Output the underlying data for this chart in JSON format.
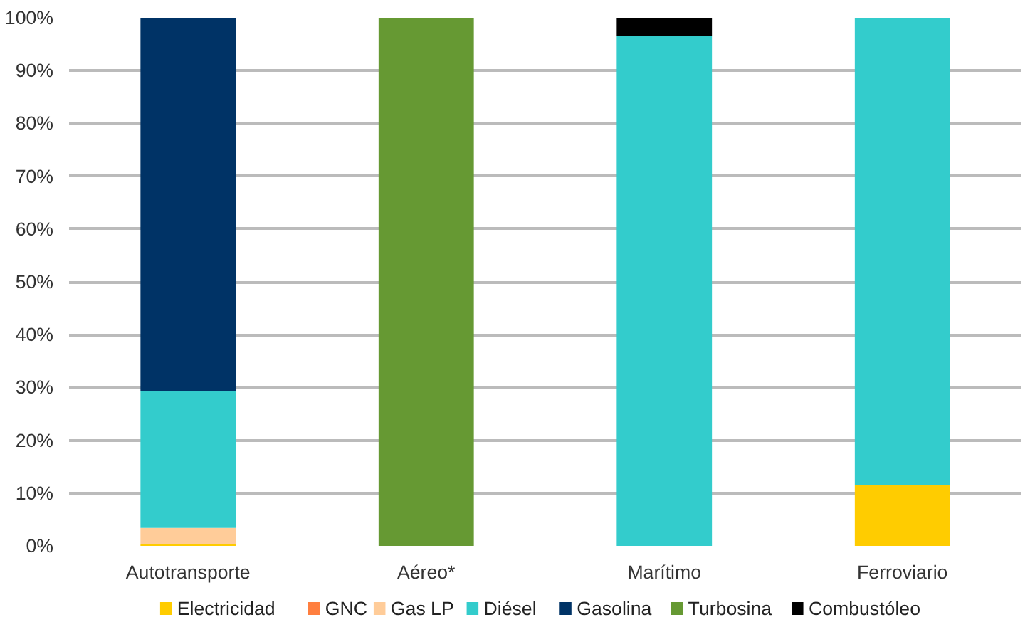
{
  "chart_data": {
    "type": "bar",
    "stacked": true,
    "categories": [
      "Autotransporte",
      "Aéreo*",
      "Marítimo",
      "Ferroviario"
    ],
    "series": [
      {
        "name": "Electricidad",
        "color": "#ffcc00",
        "values": [
          0.3,
          0,
          0,
          11.6
        ]
      },
      {
        "name": "GNC",
        "color": "#ff7f3f",
        "values": [
          0,
          0,
          0,
          0
        ]
      },
      {
        "name": "Gas LP",
        "color": "#ffcc99",
        "values": [
          3.1,
          0,
          0,
          0
        ]
      },
      {
        "name": "Diésel",
        "color": "#33cccc",
        "values": [
          25.9,
          0,
          96.5,
          88.4
        ]
      },
      {
        "name": "Gasolina",
        "color": "#003366",
        "values": [
          70.7,
          0,
          0,
          0
        ]
      },
      {
        "name": "Turbosina",
        "color": "#669933",
        "values": [
          0,
          100,
          0,
          0
        ]
      },
      {
        "name": "Combustóleo",
        "color": "#000000",
        "values": [
          0,
          0,
          3.5,
          0
        ]
      }
    ],
    "ylim": [
      0,
      100
    ],
    "yticks": [
      {
        "value": 0,
        "label": "0%"
      },
      {
        "value": 10,
        "label": "10%"
      },
      {
        "value": 20,
        "label": "20%"
      },
      {
        "value": 30,
        "label": "30%"
      },
      {
        "value": 40,
        "label": "40%"
      },
      {
        "value": 50,
        "label": "50%"
      },
      {
        "value": 60,
        "label": "60%"
      },
      {
        "value": 70,
        "label": "70%"
      },
      {
        "value": 80,
        "label": "80%"
      },
      {
        "value": 90,
        "label": "90%"
      },
      {
        "value": 100,
        "label": "100%"
      }
    ],
    "grid": "y",
    "legend": "bottom"
  }
}
